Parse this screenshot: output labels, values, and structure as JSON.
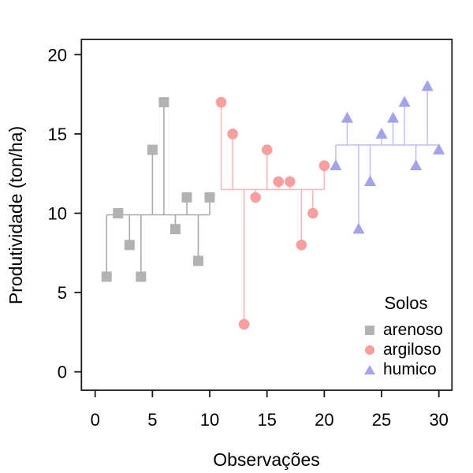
{
  "chart_data": {
    "type": "scatter",
    "title": "",
    "xlabel": "Observações",
    "ylabel": "Produtividade (ton/ha)",
    "xlim": [
      0,
      30
    ],
    "ylim": [
      0,
      20
    ],
    "xticks": [
      0,
      5,
      10,
      15,
      20,
      25,
      30
    ],
    "yticks": [
      0,
      5,
      10,
      15,
      20
    ],
    "grid": false,
    "legend": {
      "title": "Solos",
      "position": "bottom-right"
    },
    "series": [
      {
        "name": "arenoso",
        "marker": "square",
        "color": "#b2b2b2",
        "line_color": "#aaaaaa",
        "x": [
          1,
          2,
          3,
          4,
          5,
          6,
          7,
          8,
          9,
          10
        ],
        "values": [
          6,
          10,
          8,
          6,
          14,
          17,
          9,
          11,
          7,
          11
        ],
        "mean": 9.9
      },
      {
        "name": "argiloso",
        "marker": "circle",
        "color": "#f79f9f",
        "line_color": "#f9b9b9",
        "x": [
          11,
          12,
          13,
          14,
          15,
          16,
          17,
          18,
          19,
          20
        ],
        "values": [
          17,
          15,
          3,
          11,
          14,
          12,
          12,
          8,
          10,
          13
        ],
        "mean": 11.5
      },
      {
        "name": "humico",
        "marker": "triangle",
        "color": "#a3a3ed",
        "line_color": "#c2c2f4",
        "x": [
          21,
          22,
          23,
          24,
          25,
          26,
          27,
          28,
          29,
          30
        ],
        "values": [
          13,
          16,
          9,
          12,
          15,
          16,
          17,
          13,
          18,
          14
        ],
        "mean": 14.3
      }
    ]
  }
}
